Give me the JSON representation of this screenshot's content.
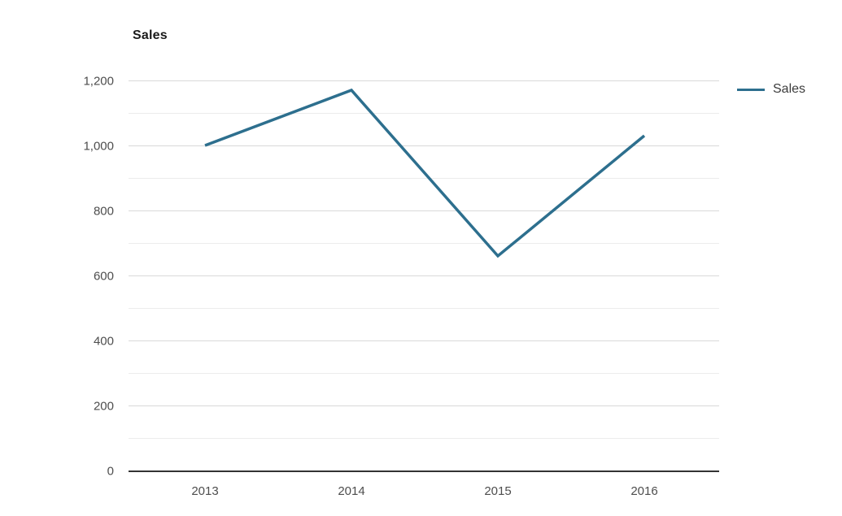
{
  "chart_data": {
    "type": "line",
    "title": "Sales",
    "categories": [
      "2013",
      "2014",
      "2015",
      "2016"
    ],
    "series": [
      {
        "name": "Sales",
        "values": [
          1000,
          1170,
          660,
          1030
        ]
      }
    ],
    "xlabel": "",
    "ylabel": "",
    "ylim": [
      0,
      1200
    ],
    "y_major_step": 200,
    "y_minor_step": 100,
    "y_tick_labels": [
      "0",
      "200",
      "400",
      "600",
      "800",
      "1,000",
      "1,200"
    ],
    "grid": "horizontal",
    "legend_position": "right",
    "colors": {
      "series": "#2d6f8e",
      "grid_major": "#d9d9d9",
      "grid_minor": "#ececec",
      "axis": "#333333",
      "tick_text": "#4d4d4d"
    }
  },
  "legend": {
    "items": [
      {
        "label": "Sales"
      }
    ]
  }
}
